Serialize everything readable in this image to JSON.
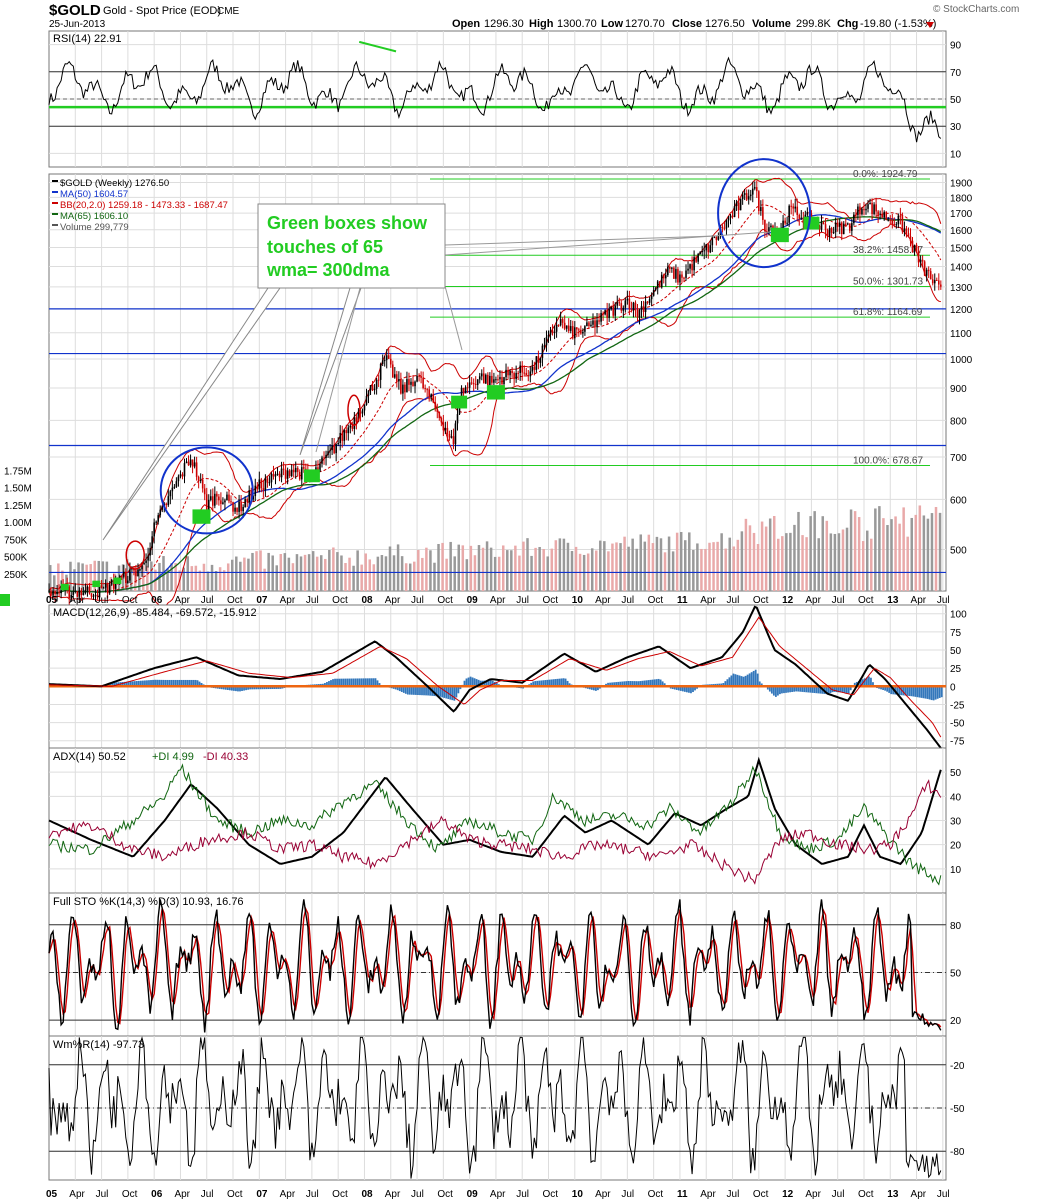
{
  "header": {
    "symbol": "$GOLD",
    "name": "Gold - Spot Price (EOD)",
    "exchange": "CME",
    "date": "25-Jun-2013",
    "watermark": "© StockCharts.com",
    "open_label": "Open",
    "open": "1296.30",
    "high_label": "High",
    "high": "1300.70",
    "low_label": "Low",
    "low": "1270.70",
    "close_label": "Close",
    "close": "1276.50",
    "volume_label": "Volume",
    "volume": "299.8K",
    "chg_label": "Chg",
    "chg": "-19.80 (-1.53%)"
  },
  "colors": {
    "black": "#000000",
    "red": "#cc0000",
    "green": "#22cc22",
    "blue": "#1133cc",
    "darkgreen": "#116611",
    "maroon": "#990033",
    "hist": "#3377bb",
    "orange": "#ee6611",
    "fill_green": "#557755",
    "grid": "#dddddd"
  },
  "annotation": {
    "line1": "Green boxes show",
    "line2": "touches of 65",
    "line3": "wma= 300dma"
  },
  "chart_data": [
    {
      "type": "line",
      "panel": "rsi",
      "label": "RSI(14) 22.91",
      "y_ticks": [
        "90",
        "70",
        "50",
        "30",
        "10"
      ],
      "ylim": [
        0,
        100
      ],
      "levels": [
        70,
        30
      ],
      "support_line": 44
    },
    {
      "type": "candlestick",
      "panel": "price",
      "scale": "log",
      "legend": [
        {
          "name": "$GOLD (Weekly) 1276.50",
          "color": "#000000"
        },
        {
          "name": "MA(50) 1604.57",
          "color": "#1133cc"
        },
        {
          "name": "BB(20,2.0) 1259.18 - 1473.33 - 1687.47",
          "color": "#cc0000"
        },
        {
          "name": "MA(65) 1606.10",
          "color": "#116611"
        },
        {
          "name": "Volume 299,779",
          "color": "#555555"
        }
      ],
      "y_ticks": [
        "1900",
        "1800",
        "1700",
        "1600",
        "1500",
        "1400",
        "1300",
        "1200",
        "1100",
        "1000",
        "900",
        "800",
        "700",
        "600",
        "500"
      ],
      "ylim": [
        430,
        1960
      ],
      "x_labels": [
        "05",
        "Apr",
        "Jul",
        "Oct",
        "06",
        "Apr",
        "Jul",
        "Oct",
        "07",
        "Apr",
        "Jul",
        "Oct",
        "08",
        "Apr",
        "Jul",
        "Oct",
        "09",
        "Apr",
        "Jul",
        "Oct",
        "10",
        "Apr",
        "Jul",
        "Oct",
        "11",
        "Apr",
        "Jul",
        "Oct",
        "12",
        "Apr",
        "Jul",
        "Oct",
        "13",
        "Apr",
        "Jul"
      ],
      "x_range": [
        "2005-01",
        "2013-07"
      ],
      "fib_levels": [
        {
          "label": "0.0%: 1924.79",
          "value": 1924.79
        },
        {
          "label": "38.2%: 1458.77",
          "value": 1458.77
        },
        {
          "label": "50.0%: 1301.73",
          "value": 1301.73
        },
        {
          "label": "61.8%: 1164.69",
          "value": 1164.69
        },
        {
          "label": "100.0%: 678.67",
          "value": 678.67
        }
      ],
      "horizontal_lines": [
        1200,
        1020,
        730,
        460
      ],
      "anchor_prices": [
        [
          2005.0,
          428
        ],
        [
          2005.5,
          430
        ],
        [
          2005.9,
          470
        ],
        [
          2006.0,
          540
        ],
        [
          2006.35,
          700
        ],
        [
          2006.5,
          590
        ],
        [
          2006.6,
          610
        ],
        [
          2006.8,
          580
        ],
        [
          2007.0,
          630
        ],
        [
          2007.3,
          670
        ],
        [
          2007.5,
          650
        ],
        [
          2007.7,
          720
        ],
        [
          2007.9,
          800
        ],
        [
          2008.1,
          920
        ],
        [
          2008.2,
          1000
        ],
        [
          2008.35,
          890
        ],
        [
          2008.5,
          940
        ],
        [
          2008.7,
          820
        ],
        [
          2008.85,
          730
        ],
        [
          2008.9,
          880
        ],
        [
          2009.1,
          940
        ],
        [
          2009.2,
          920
        ],
        [
          2009.4,
          950
        ],
        [
          2009.6,
          960
        ],
        [
          2009.85,
          1150
        ],
        [
          2009.95,
          1100
        ],
        [
          2010.1,
          1110
        ],
        [
          2010.5,
          1240
        ],
        [
          2010.6,
          1180
        ],
        [
          2010.9,
          1380
        ],
        [
          2011.0,
          1340
        ],
        [
          2011.3,
          1520
        ],
        [
          2011.6,
          1780
        ],
        [
          2011.7,
          1880
        ],
        [
          2011.8,
          1630
        ],
        [
          2011.95,
          1600
        ],
        [
          2012.05,
          1720
        ],
        [
          2012.4,
          1600
        ],
        [
          2012.6,
          1620
        ],
        [
          2012.75,
          1760
        ],
        [
          2012.95,
          1680
        ],
        [
          2013.1,
          1640
        ],
        [
          2013.3,
          1400
        ],
        [
          2013.48,
          1276
        ]
      ]
    },
    {
      "type": "bar",
      "panel": "volume",
      "name": "Volume",
      "y_ticks": [
        "1.75M",
        "1.50M",
        "1.25M",
        "1.00M",
        "750K",
        "500K",
        "250K"
      ],
      "ylim": [
        0,
        1900000
      ]
    },
    {
      "type": "line",
      "panel": "macd",
      "label": "MACD(12,26,9) -85.484, -69.572, -15.912",
      "y_ticks": [
        "100",
        "75",
        "50",
        "25",
        "0",
        "-25",
        "-50",
        "-75"
      ],
      "ylim": [
        -85,
        112
      ],
      "series": [
        {
          "name": "MACD",
          "color": "#000000",
          "anchors": [
            [
              2005.0,
              3
            ],
            [
              2005.5,
              0
            ],
            [
              2006.0,
              25
            ],
            [
              2006.4,
              40
            ],
            [
              2006.8,
              15
            ],
            [
              2007.2,
              10
            ],
            [
              2007.6,
              20
            ],
            [
              2008.1,
              62
            ],
            [
              2008.3,
              40
            ],
            [
              2008.6,
              0
            ],
            [
              2008.85,
              -35
            ],
            [
              2009.0,
              -5
            ],
            [
              2009.2,
              10
            ],
            [
              2009.5,
              5
            ],
            [
              2009.9,
              45
            ],
            [
              2010.2,
              20
            ],
            [
              2010.5,
              40
            ],
            [
              2010.8,
              55
            ],
            [
              2011.1,
              25
            ],
            [
              2011.4,
              40
            ],
            [
              2011.6,
              75
            ],
            [
              2011.72,
              112
            ],
            [
              2011.9,
              50
            ],
            [
              2012.1,
              30
            ],
            [
              2012.4,
              -10
            ],
            [
              2012.6,
              -20
            ],
            [
              2012.8,
              30
            ],
            [
              2012.95,
              10
            ],
            [
              2013.15,
              -25
            ],
            [
              2013.35,
              -60
            ],
            [
              2013.48,
              -85
            ]
          ]
        },
        {
          "name": "Signal",
          "color": "#cc0000",
          "anchors": [
            [
              2005.0,
              2
            ],
            [
              2005.6,
              0
            ],
            [
              2006.1,
              20
            ],
            [
              2006.5,
              35
            ],
            [
              2006.9,
              18
            ],
            [
              2007.3,
              12
            ],
            [
              2007.7,
              18
            ],
            [
              2008.15,
              55
            ],
            [
              2008.4,
              38
            ],
            [
              2008.7,
              0
            ],
            [
              2008.95,
              -25
            ],
            [
              2009.1,
              -5
            ],
            [
              2009.3,
              8
            ],
            [
              2009.6,
              8
            ],
            [
              2009.95,
              38
            ],
            [
              2010.3,
              22
            ],
            [
              2010.6,
              38
            ],
            [
              2010.9,
              48
            ],
            [
              2011.2,
              28
            ],
            [
              2011.5,
              40
            ],
            [
              2011.75,
              95
            ],
            [
              2011.95,
              55
            ],
            [
              2012.2,
              25
            ],
            [
              2012.45,
              -5
            ],
            [
              2012.65,
              -12
            ],
            [
              2012.85,
              25
            ],
            [
              2013.0,
              12
            ],
            [
              2013.2,
              -20
            ],
            [
              2013.4,
              -50
            ],
            [
              2013.48,
              -70
            ]
          ]
        }
      ]
    },
    {
      "type": "line",
      "panel": "adx",
      "label": "ADX(14) 50.52",
      "pdi_label": "+DI 4.99",
      "mdi_label": "-DI 40.33",
      "y_ticks": [
        "50",
        "40",
        "30",
        "20",
        "10"
      ],
      "ylim": [
        0,
        60
      ],
      "series": [
        {
          "name": "ADX",
          "color": "#000000",
          "anchors": [
            [
              2005.0,
              30
            ],
            [
              2005.4,
              22
            ],
            [
              2005.8,
              15
            ],
            [
              2006.1,
              30
            ],
            [
              2006.35,
              45
            ],
            [
              2006.6,
              35
            ],
            [
              2006.9,
              20
            ],
            [
              2007.2,
              12
            ],
            [
              2007.5,
              15
            ],
            [
              2007.8,
              25
            ],
            [
              2008.2,
              48
            ],
            [
              2008.45,
              35
            ],
            [
              2008.75,
              20
            ],
            [
              2009.0,
              22
            ],
            [
              2009.3,
              17
            ],
            [
              2009.6,
              15
            ],
            [
              2009.9,
              32
            ],
            [
              2010.1,
              25
            ],
            [
              2010.35,
              30
            ],
            [
              2010.7,
              20
            ],
            [
              2010.95,
              33
            ],
            [
              2011.2,
              28
            ],
            [
              2011.45,
              35
            ],
            [
              2011.65,
              40
            ],
            [
              2011.75,
              55
            ],
            [
              2011.9,
              35
            ],
            [
              2012.1,
              20
            ],
            [
              2012.35,
              12
            ],
            [
              2012.6,
              15
            ],
            [
              2012.75,
              28
            ],
            [
              2012.9,
              15
            ],
            [
              2013.1,
              12
            ],
            [
              2013.3,
              25
            ],
            [
              2013.48,
              51
            ]
          ]
        },
        {
          "name": "+DI",
          "color": "#116611",
          "anchors": [
            [
              2005.0,
              20
            ],
            [
              2005.4,
              18
            ],
            [
              2005.8,
              30
            ],
            [
              2006.1,
              40
            ],
            [
              2006.25,
              52
            ],
            [
              2006.6,
              30
            ],
            [
              2006.9,
              25
            ],
            [
              2007.2,
              30
            ],
            [
              2007.5,
              28
            ],
            [
              2007.8,
              38
            ],
            [
              2008.1,
              45
            ],
            [
              2008.4,
              30
            ],
            [
              2008.7,
              18
            ],
            [
              2009.0,
              30
            ],
            [
              2009.3,
              25
            ],
            [
              2009.6,
              22
            ],
            [
              2009.8,
              40
            ],
            [
              2010.1,
              30
            ],
            [
              2010.4,
              32
            ],
            [
              2010.7,
              28
            ],
            [
              2010.9,
              35
            ],
            [
              2011.2,
              25
            ],
            [
              2011.5,
              38
            ],
            [
              2011.72,
              52
            ],
            [
              2011.95,
              25
            ],
            [
              2012.2,
              18
            ],
            [
              2012.5,
              22
            ],
            [
              2012.75,
              35
            ],
            [
              2013.0,
              22
            ],
            [
              2013.2,
              12
            ],
            [
              2013.48,
              5
            ]
          ]
        },
        {
          "name": "-DI",
          "color": "#990033",
          "anchors": [
            [
              2005.0,
              25
            ],
            [
              2005.4,
              28
            ],
            [
              2005.8,
              18
            ],
            [
              2006.1,
              15
            ],
            [
              2006.5,
              22
            ],
            [
              2006.9,
              25
            ],
            [
              2007.2,
              18
            ],
            [
              2007.5,
              20
            ],
            [
              2007.8,
              15
            ],
            [
              2008.1,
              12
            ],
            [
              2008.45,
              22
            ],
            [
              2008.75,
              30
            ],
            [
              2009.0,
              22
            ],
            [
              2009.3,
              20
            ],
            [
              2009.6,
              18
            ],
            [
              2009.9,
              15
            ],
            [
              2010.2,
              20
            ],
            [
              2010.5,
              18
            ],
            [
              2010.8,
              15
            ],
            [
              2011.1,
              20
            ],
            [
              2011.4,
              12
            ],
            [
              2011.7,
              5
            ],
            [
              2011.95,
              22
            ],
            [
              2012.2,
              25
            ],
            [
              2012.5,
              20
            ],
            [
              2012.8,
              18
            ],
            [
              2013.0,
              20
            ],
            [
              2013.2,
              32
            ],
            [
              2013.35,
              45
            ],
            [
              2013.48,
              40
            ]
          ]
        }
      ]
    },
    {
      "type": "line",
      "panel": "sto",
      "label": "Full STO %K(14,3) %D(3) 10.93, 16.76",
      "y_ticks": [
        "80",
        "50",
        "20"
      ],
      "ylim": [
        10,
        100
      ],
      "levels": [
        80,
        50,
        20
      ],
      "series": [
        {
          "name": "%K",
          "color": "#000000"
        },
        {
          "name": "%D",
          "color": "#cc0000"
        }
      ]
    },
    {
      "type": "line",
      "panel": "willr",
      "label": "Wm%R(14) -97.73",
      "y_ticks": [
        "-20",
        "-50",
        "-80"
      ],
      "ylim": [
        -100,
        0
      ],
      "levels": [
        -20,
        -50,
        -80
      ]
    }
  ]
}
